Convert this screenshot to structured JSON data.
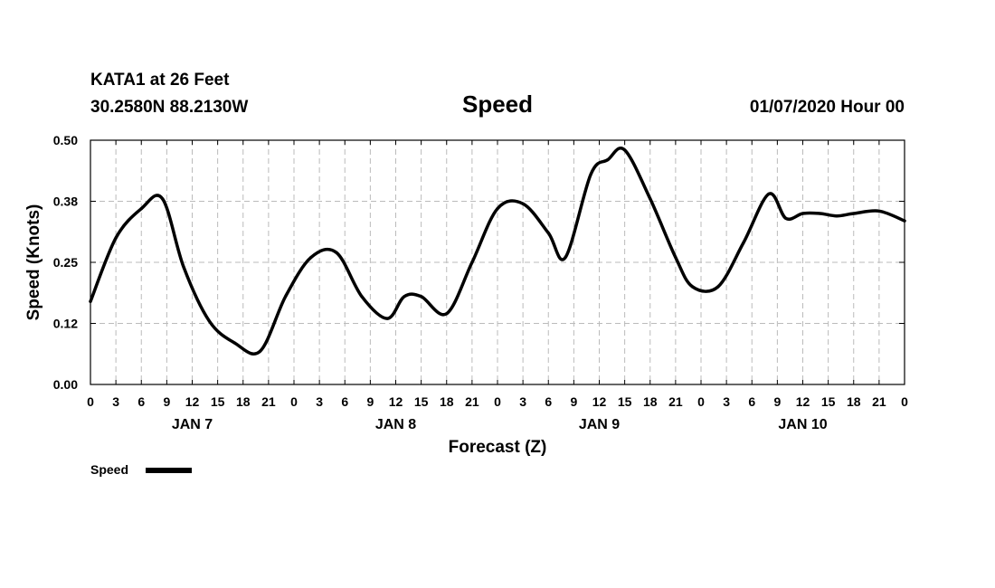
{
  "header": {
    "station": "KATA1 at 26 Feet",
    "coords": "30.2580N 88.2130W",
    "title": "Speed",
    "run": "01/07/2020 Hour 00"
  },
  "chart_data": {
    "type": "line",
    "title": "Speed",
    "xlabel": "Forecast (Z)",
    "ylabel": "Speed (Knots)",
    "ylim": [
      0,
      0.5
    ],
    "xlim": [
      0,
      96
    ],
    "x_unit": "hours from 01/07/2020 00Z",
    "y_ticks": [
      "0.00",
      "0.12",
      "0.25",
      "0.38",
      "0.50"
    ],
    "x_tick_labels": [
      "0",
      "3",
      "6",
      "9",
      "12",
      "15",
      "18",
      "21",
      "0",
      "3",
      "6",
      "9",
      "12",
      "15",
      "18",
      "21",
      "0",
      "3",
      "6",
      "9",
      "12",
      "15",
      "18",
      "21",
      "0",
      "3",
      "6",
      "9",
      "12",
      "15",
      "18",
      "21",
      "0"
    ],
    "day_labels": [
      {
        "label": "JAN 7",
        "hour": 12
      },
      {
        "label": "JAN 8",
        "hour": 36
      },
      {
        "label": "JAN 9",
        "hour": 60
      },
      {
        "label": "JAN 10",
        "hour": 84
      }
    ],
    "grid": true,
    "legend": "bottom-left",
    "series": [
      {
        "name": "Speed",
        "color": "#000000",
        "x": [
          0,
          3,
          6,
          8.5,
          11,
          14,
          17,
          20,
          23,
          26,
          29,
          32,
          35,
          37,
          39,
          42,
          45,
          48,
          51,
          54,
          56,
          59,
          61,
          63,
          66,
          69,
          71,
          74,
          77,
          80,
          82,
          84,
          86,
          88,
          90,
          93,
          96
        ],
        "y": [
          0.17,
          0.3,
          0.36,
          0.38,
          0.24,
          0.13,
          0.085,
          0.068,
          0.18,
          0.26,
          0.27,
          0.18,
          0.135,
          0.18,
          0.18,
          0.145,
          0.25,
          0.36,
          0.37,
          0.31,
          0.26,
          0.43,
          0.46,
          0.48,
          0.38,
          0.26,
          0.2,
          0.2,
          0.29,
          0.39,
          0.34,
          0.35,
          0.35,
          0.345,
          0.35,
          0.355,
          0.335
        ]
      }
    ]
  }
}
